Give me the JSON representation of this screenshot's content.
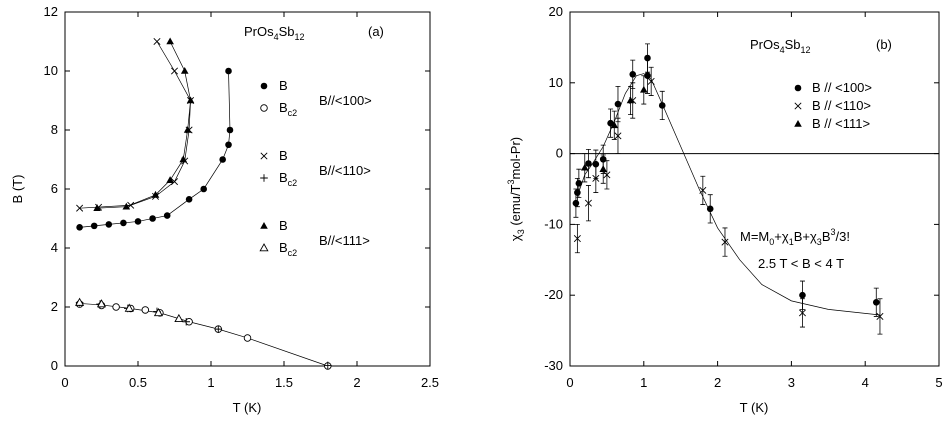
{
  "chart_data": [
    {
      "type": "scatter",
      "panel": "(a)",
      "compound": {
        "base": "PrOs",
        "sub1": "4",
        "mid": "Sb",
        "sub2": "12"
      },
      "xlabel": "T (K)",
      "ylabel": "B (T)",
      "xlim": [
        0,
        2.5
      ],
      "ylim": [
        0,
        12
      ],
      "xticks": [
        0,
        0.5,
        1,
        1.5,
        2,
        2.5
      ],
      "xtick_labels": [
        "0",
        "0.5",
        "1",
        "1.5",
        "2",
        "2.5"
      ],
      "yticks": [
        0,
        2,
        4,
        6,
        8,
        10,
        12
      ],
      "ytick_labels": [
        "0",
        "2",
        "4",
        "6",
        "8",
        "10",
        "12"
      ],
      "legend_groups": [
        {
          "direction": "B//<100>",
          "entries": [
            {
              "marker": "filled-circle",
              "label": "B",
              "sub": ""
            },
            {
              "marker": "open-circle",
              "label": "B",
              "sub": "c2"
            }
          ]
        },
        {
          "direction": "B//<110>",
          "entries": [
            {
              "marker": "cross-x",
              "label": "B",
              "sub": ""
            },
            {
              "marker": "plus",
              "label": "B",
              "sub": "c2"
            }
          ]
        },
        {
          "direction": "B//<111>",
          "entries": [
            {
              "marker": "filled-triangle",
              "label": "B",
              "sub": ""
            },
            {
              "marker": "open-triangle",
              "label": "B",
              "sub": "c2"
            }
          ]
        }
      ],
      "series": [
        {
          "marker": "filled-circle",
          "points": [
            [
              0.1,
              4.7
            ],
            [
              0.2,
              4.75
            ],
            [
              0.3,
              4.8
            ],
            [
              0.4,
              4.85
            ],
            [
              0.5,
              4.9
            ],
            [
              0.6,
              5.0
            ],
            [
              0.7,
              5.1
            ],
            [
              0.85,
              5.65
            ],
            [
              0.95,
              6.0
            ],
            [
              1.08,
              7.0
            ],
            [
              1.12,
              7.5
            ],
            [
              1.13,
              8.0
            ],
            [
              1.12,
              10.0
            ]
          ]
        },
        {
          "marker": "cross-x",
          "points": [
            [
              0.1,
              5.35
            ],
            [
              0.23,
              5.38
            ],
            [
              0.45,
              5.45
            ],
            [
              0.62,
              5.75
            ],
            [
              0.75,
              6.25
            ],
            [
              0.82,
              6.95
            ],
            [
              0.85,
              8.0
            ],
            [
              0.86,
              9.0
            ],
            [
              0.75,
              10.0
            ],
            [
              0.63,
              11.0
            ]
          ]
        },
        {
          "marker": "filled-triangle",
          "points": [
            [
              0.22,
              5.35
            ],
            [
              0.42,
              5.4
            ],
            [
              0.62,
              5.8
            ],
            [
              0.72,
              6.3
            ],
            [
              0.81,
              7.0
            ],
            [
              0.84,
              8.0
            ],
            [
              0.86,
              9.0
            ],
            [
              0.82,
              10.0
            ],
            [
              0.72,
              11.0
            ]
          ]
        },
        {
          "marker": "open-circle",
          "points": [
            [
              0.1,
              2.1
            ],
            [
              0.25,
              2.05
            ],
            [
              0.35,
              2.0
            ],
            [
              0.45,
              1.95
            ],
            [
              0.55,
              1.9
            ],
            [
              0.65,
              1.8
            ],
            [
              0.85,
              1.5
            ],
            [
              1.05,
              1.25
            ],
            [
              1.25,
              0.95
            ],
            [
              1.8,
              0.0
            ]
          ]
        },
        {
          "marker": "plus",
          "points": [
            [
              0.1,
              2.15
            ],
            [
              0.24,
              2.1
            ],
            [
              0.43,
              1.95
            ],
            [
              0.63,
              1.85
            ],
            [
              0.83,
              1.5
            ],
            [
              1.05,
              1.25
            ],
            [
              1.8,
              0.02
            ]
          ]
        },
        {
          "marker": "open-triangle",
          "points": [
            [
              0.1,
              2.15
            ],
            [
              0.25,
              2.1
            ],
            [
              0.44,
              1.95
            ],
            [
              0.64,
              1.8
            ],
            [
              0.78,
              1.6
            ]
          ]
        }
      ],
      "curves": [
        [
          [
            0.1,
            4.7
          ],
          [
            0.3,
            4.8
          ],
          [
            0.5,
            4.9
          ],
          [
            0.7,
            5.1
          ],
          [
            0.85,
            5.65
          ],
          [
            0.95,
            6.0
          ],
          [
            1.08,
            7.0
          ],
          [
            1.12,
            7.5
          ],
          [
            1.13,
            8.0
          ],
          [
            1.12,
            10.0
          ]
        ],
        [
          [
            0.1,
            5.35
          ],
          [
            0.45,
            5.45
          ],
          [
            0.62,
            5.75
          ],
          [
            0.75,
            6.25
          ],
          [
            0.82,
            6.95
          ],
          [
            0.85,
            8.0
          ],
          [
            0.86,
            9.0
          ],
          [
            0.75,
            10.0
          ],
          [
            0.63,
            11.0
          ]
        ],
        [
          [
            0.22,
            5.35
          ],
          [
            0.42,
            5.4
          ],
          [
            0.62,
            5.8
          ],
          [
            0.72,
            6.3
          ],
          [
            0.81,
            7.0
          ],
          [
            0.84,
            8.0
          ],
          [
            0.86,
            9.0
          ],
          [
            0.82,
            10.0
          ],
          [
            0.72,
            11.0
          ]
        ],
        [
          [
            0.1,
            2.12
          ],
          [
            0.25,
            2.07
          ],
          [
            0.45,
            1.95
          ],
          [
            0.65,
            1.8
          ],
          [
            0.85,
            1.5
          ],
          [
            1.05,
            1.25
          ],
          [
            1.25,
            0.95
          ],
          [
            1.8,
            0.0
          ]
        ]
      ]
    },
    {
      "type": "scatter",
      "panel": "(b)",
      "compound": {
        "base": "PrOs",
        "sub1": "4",
        "mid": "Sb",
        "sub2": "12"
      },
      "xlabel": "T (K)",
      "ylabel": "χ3 (emu/T3mol-Pr)",
      "xlim": [
        0,
        5
      ],
      "ylim": [
        -30,
        20
      ],
      "xticks": [
        0,
        1,
        2,
        3,
        4,
        5
      ],
      "xtick_labels": [
        "0",
        "1",
        "2",
        "3",
        "4",
        "5"
      ],
      "yticks": [
        -30,
        -20,
        -10,
        0,
        10,
        20
      ],
      "ytick_labels": [
        "-30",
        "-20",
        "-10",
        "0",
        "10",
        "20"
      ],
      "legend": [
        {
          "marker": "filled-circle",
          "label": "B // <100>"
        },
        {
          "marker": "cross-x",
          "label": "B // <110>"
        },
        {
          "marker": "filled-triangle",
          "label": "B // <111>"
        }
      ],
      "formula": "M=M0+χ1B+χ3B3/3!",
      "range_note": "2.5 T < B < 4 T",
      "series": [
        {
          "marker": "filled-circle",
          "points": [
            [
              0.08,
              -7,
              2.0
            ],
            [
              0.1,
              -5.5,
              2.0
            ],
            [
              0.12,
              -4.2,
              2.0
            ],
            [
              0.25,
              -1.4,
              2.0
            ],
            [
              0.35,
              -1.5,
              2.0
            ],
            [
              0.45,
              -0.8,
              2.0
            ],
            [
              0.55,
              4.3,
              2.0
            ],
            [
              0.65,
              7.0,
              2.5
            ],
            [
              0.85,
              11.2,
              2.0
            ],
            [
              1.05,
              13.5,
              2.0
            ],
            [
              1.05,
              11.0,
              2.5
            ],
            [
              1.25,
              6.8,
              2.0
            ],
            [
              1.9,
              -7.8,
              2.0
            ],
            [
              3.15,
              -20,
              2.0
            ],
            [
              4.15,
              -21,
              2.0
            ]
          ]
        },
        {
          "marker": "cross-x",
          "points": [
            [
              0.1,
              -12,
              2.0
            ],
            [
              0.25,
              -7,
              2.5
            ],
            [
              0.35,
              -3.5,
              2.0
            ],
            [
              0.5,
              -3.0,
              2.0
            ],
            [
              0.65,
              2.5,
              2.5
            ],
            [
              0.85,
              7.5,
              2.5
            ],
            [
              1.1,
              10.2,
              2.0
            ],
            [
              1.8,
              -5.2,
              2.0
            ],
            [
              2.1,
              -12.5,
              2.0
            ],
            [
              3.15,
              -22.5,
              2.0
            ],
            [
              4.2,
              -23,
              2.5
            ]
          ]
        },
        {
          "marker": "filled-triangle",
          "points": [
            [
              0.2,
              -2.0,
              2.0
            ],
            [
              0.45,
              -2.2,
              2.0
            ],
            [
              0.6,
              4.0,
              2.0
            ],
            [
              0.82,
              7.5,
              2.0
            ],
            [
              1.0,
              9.0,
              2.0
            ]
          ]
        }
      ],
      "fit_curve": [
        [
          0.1,
          -6
        ],
        [
          0.2,
          -3
        ],
        [
          0.3,
          -1.5
        ],
        [
          0.45,
          1.0
        ],
        [
          0.6,
          4.5
        ],
        [
          0.75,
          8.5
        ],
        [
          0.9,
          11.0
        ],
        [
          1.0,
          11.3
        ],
        [
          1.1,
          10.5
        ],
        [
          1.25,
          7.0
        ],
        [
          1.5,
          1.0
        ],
        [
          1.75,
          -5.0
        ],
        [
          2.0,
          -10.5
        ],
        [
          2.3,
          -15.0
        ],
        [
          2.6,
          -18.5
        ],
        [
          3.0,
          -20.8
        ],
        [
          3.5,
          -22.0
        ],
        [
          4.2,
          -22.8
        ]
      ]
    }
  ]
}
